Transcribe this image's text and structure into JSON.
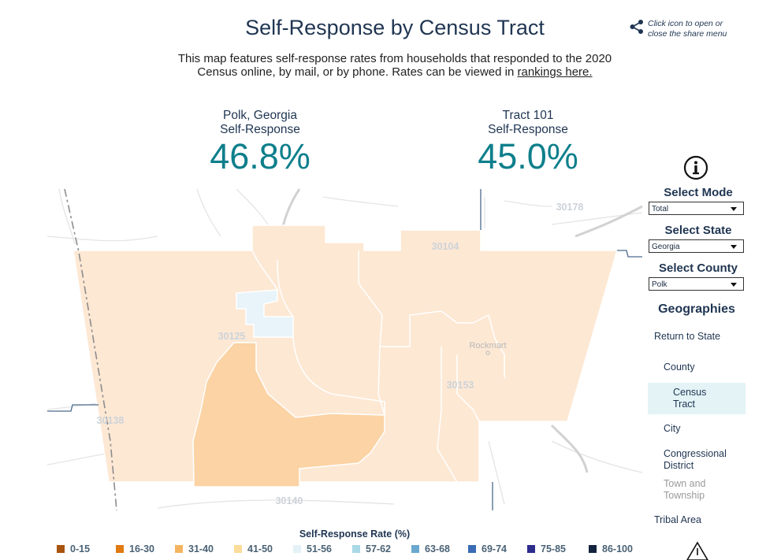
{
  "header": {
    "title": "Self-Response by Census Tract",
    "subtitle_line1": "This map features self-response rates from households that responded to the 2020",
    "subtitle_line2": "Census online, by mail, or by phone. Rates can be viewed in",
    "rankings_link": "rankings here."
  },
  "share": {
    "icon": "share-icon",
    "hint": "Click icon to open or close the share menu"
  },
  "stats": {
    "county": {
      "place": "Polk, Georgia",
      "label": "Self-Response",
      "value": "46.8%"
    },
    "tract": {
      "place": "Tract 101",
      "label": "Self-Response",
      "value": "45.0%"
    }
  },
  "map": {
    "zip_labels": [
      "30178",
      "30104",
      "30125",
      "30153",
      "30138",
      "30140"
    ],
    "town_label": "Rockmart",
    "colors": {
      "light": "#fde8d4",
      "medium": "#fbd3a4",
      "lightblue": "#e8f4f9",
      "boundary": "#4a6a8c"
    }
  },
  "sidebar": {
    "info_icon": "info-icon",
    "mode": {
      "title": "Select Mode",
      "value": "Total"
    },
    "state": {
      "title": "Select State",
      "value": "Georgia"
    },
    "county": {
      "title": "Select County",
      "value": "Polk"
    },
    "geographies_title": "Geographies",
    "items": [
      {
        "label": "Return to State"
      },
      {
        "label": "County"
      },
      {
        "label": "Census Tract"
      },
      {
        "label": "City"
      },
      {
        "label": "Congressional District"
      },
      {
        "label": "Town and Township"
      },
      {
        "label": "Tribal Area"
      }
    ]
  },
  "legend": {
    "title": "Self-Response Rate (%)",
    "items": [
      {
        "label": "0-15",
        "color": "#a8530f"
      },
      {
        "label": "16-30",
        "color": "#e07a12"
      },
      {
        "label": "31-40",
        "color": "#f4b45f"
      },
      {
        "label": "41-50",
        "color": "#fbdc9a"
      },
      {
        "label": "51-56",
        "color": "#e4f2f7"
      },
      {
        "label": "57-62",
        "color": "#a9d8e6"
      },
      {
        "label": "63-68",
        "color": "#6aa8cf"
      },
      {
        "label": "69-74",
        "color": "#3b6bb5"
      },
      {
        "label": "75-85",
        "color": "#2c2c8c"
      },
      {
        "label": "86-100",
        "color": "#14233f"
      }
    ]
  }
}
